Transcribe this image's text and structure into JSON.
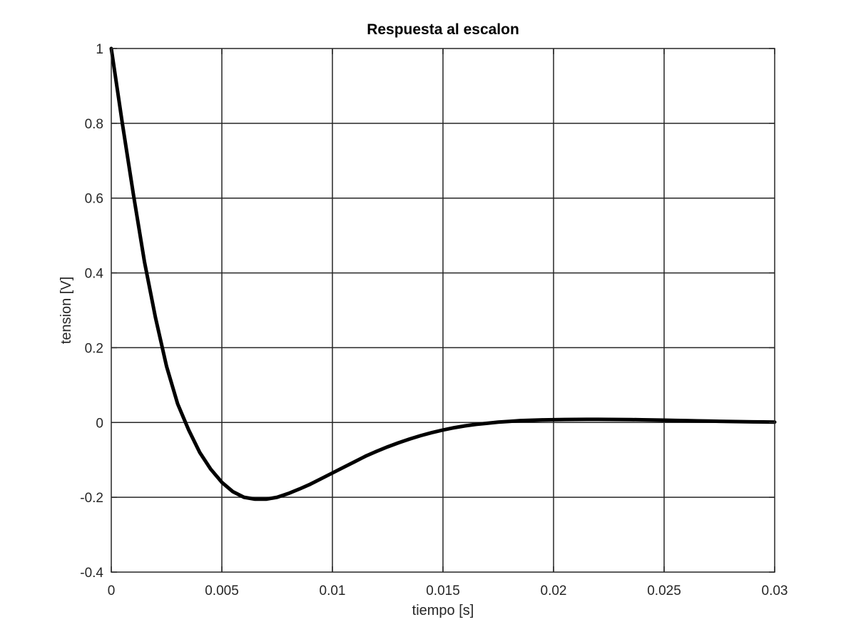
{
  "chart_data": {
    "type": "line",
    "title": "Respuesta al escalon",
    "xlabel": "tiempo [s]",
    "ylabel": "tension [V]",
    "xlim": [
      0,
      0.03
    ],
    "ylim": [
      -0.4,
      1
    ],
    "xticks": [
      0,
      0.005,
      0.01,
      0.015,
      0.02,
      0.025,
      0.03
    ],
    "xtick_labels": [
      "0",
      "0.005",
      "0.01",
      "0.015",
      "0.02",
      "0.025",
      "0.03"
    ],
    "yticks": [
      -0.4,
      -0.2,
      0,
      0.2,
      0.4,
      0.6,
      0.8,
      1
    ],
    "ytick_labels": [
      "-0.4",
      "-0.2",
      "0",
      "0.2",
      "0.4",
      "0.6",
      "0.8",
      "1"
    ],
    "grid": true,
    "line_color": "#000000",
    "series": [
      {
        "x": [
          0,
          0.0005,
          0.001,
          0.0015,
          0.002,
          0.0025,
          0.003,
          0.0035,
          0.004,
          0.0045,
          0.005,
          0.0055,
          0.006,
          0.0065,
          0.007,
          0.0075,
          0.008,
          0.0085,
          0.009,
          0.0095,
          0.01,
          0.0105,
          0.011,
          0.0115,
          0.012,
          0.0125,
          0.013,
          0.0135,
          0.014,
          0.0145,
          0.015,
          0.0155,
          0.016,
          0.0165,
          0.017,
          0.0175,
          0.018,
          0.0185,
          0.019,
          0.0195,
          0.02,
          0.0205,
          0.021,
          0.0215,
          0.022,
          0.0225,
          0.023,
          0.0235,
          0.024,
          0.0245,
          0.025,
          0.0255,
          0.026,
          0.0265,
          0.027,
          0.0275,
          0.028,
          0.0285,
          0.029,
          0.0295,
          0.03
        ],
        "values": [
          1,
          0.8,
          0.61,
          0.43,
          0.28,
          0.15,
          0.05,
          -0.02,
          -0.08,
          -0.125,
          -0.16,
          -0.185,
          -0.2,
          -0.205,
          -0.205,
          -0.2,
          -0.19,
          -0.178,
          -0.165,
          -0.15,
          -0.135,
          -0.12,
          -0.105,
          -0.09,
          -0.077,
          -0.065,
          -0.054,
          -0.044,
          -0.035,
          -0.027,
          -0.02,
          -0.014,
          -0.009,
          -0.005,
          -0.002,
          0.001,
          0.003,
          0.005,
          0.006,
          0.007,
          0.0075,
          0.008,
          0.0082,
          0.0083,
          0.0083,
          0.0082,
          0.008,
          0.0077,
          0.0073,
          0.0068,
          0.0062,
          0.0056,
          0.005,
          0.0044,
          0.0038,
          0.0032,
          0.0027,
          0.0022,
          0.0018,
          0.0014,
          0.001
        ]
      }
    ]
  }
}
